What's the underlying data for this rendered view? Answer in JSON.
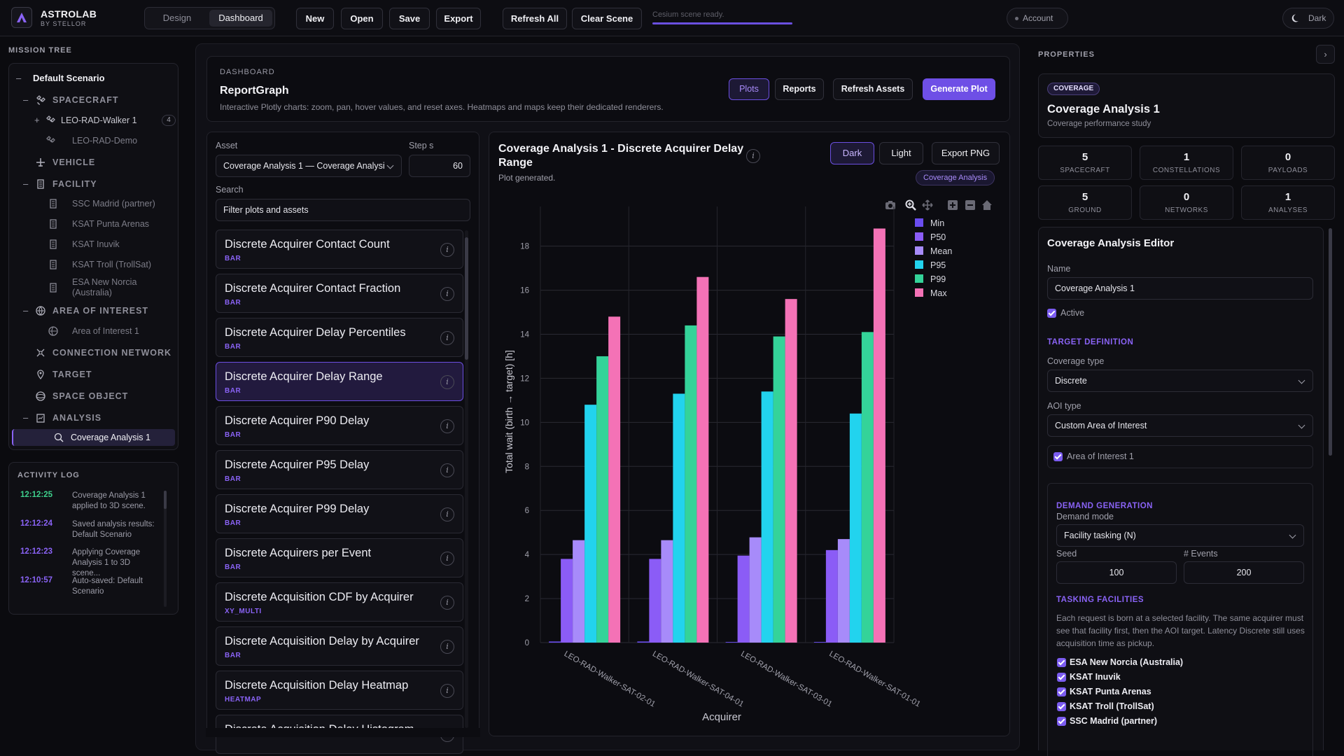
{
  "app": {
    "brand": "ASTROLAB",
    "brand_sub": "BY STELLOR"
  },
  "topbar": {
    "modes": [
      "Design",
      "Dashboard"
    ],
    "buttons": [
      "New",
      "Open",
      "Save",
      "Export",
      "Refresh All",
      "Clear Scene"
    ],
    "status_text": "Cesium scene ready.",
    "status_progress": 1.0,
    "account": "Account",
    "theme": "Dark"
  },
  "mission_tree": {
    "title": "MISSION TREE",
    "scenario": "Default Scenario",
    "spacecraft": "SPACECRAFT",
    "sc_items": [
      "LEO-RAD-Walker 1",
      "LEO-RAD-Demo"
    ],
    "sc_count": "4",
    "vehicle": "VEHICLE",
    "facility": "FACILITY",
    "facilities": [
      "SSC Madrid (partner)",
      "KSAT Punta Arenas",
      "KSAT Inuvik",
      "KSAT Troll (TrollSat)",
      "ESA New Norcia",
      "(Australia)"
    ],
    "aoi": "AREA OF INTEREST",
    "aoi_item": "Area of Interest 1",
    "network": "CONNECTION NETWORK",
    "target": "TARGET",
    "space_object": "SPACE OBJECT",
    "analysis": "ANALYSIS",
    "analysis_item": "Coverage Analysis 1"
  },
  "activity": {
    "title": "ACTIVITY LOG",
    "entries": [
      {
        "time": "12:12:25",
        "msg": "Coverage Analysis 1 applied to 3D scene.",
        "color": "#3ed08c"
      },
      {
        "time": "12:12:24",
        "msg": "Saved analysis results: Default Scenario",
        "color": "#8a63f6"
      },
      {
        "time": "12:12:23",
        "msg": "Applying Coverage Analysis 1 to 3D scene...",
        "color": "#8a63f6"
      },
      {
        "time": "12:10:57",
        "msg": "Auto-saved: Default Scenario",
        "color": "#8a63f6"
      }
    ]
  },
  "dashboard": {
    "eyebrow": "DASHBOARD",
    "title": "ReportGraph",
    "desc": "Interactive Plotly charts: zoom, pan, hover values, and reset axes. Heatmaps and maps keep their dedicated renderers.",
    "buttons": [
      "Plots",
      "Reports",
      "Refresh Assets",
      "Generate Plot"
    ]
  },
  "list": {
    "asset_label": "Asset",
    "asset_value": "Coverage Analysis 1 — Coverage Analysi",
    "step_label": "Step s",
    "step_value": "60",
    "search_label": "Search",
    "search_placeholder": "Filter plots and assets",
    "items": [
      {
        "title": "Discrete Acquirer Contact Count",
        "type": "BAR"
      },
      {
        "title": "Discrete Acquirer Contact Fraction",
        "type": "BAR"
      },
      {
        "title": "Discrete Acquirer Delay Percentiles",
        "type": "BAR"
      },
      {
        "title": "Discrete Acquirer Delay Range",
        "type": "BAR"
      },
      {
        "title": "Discrete Acquirer P90 Delay",
        "type": "BAR"
      },
      {
        "title": "Discrete Acquirer P95 Delay",
        "type": "BAR"
      },
      {
        "title": "Discrete Acquirer P99 Delay",
        "type": "BAR"
      },
      {
        "title": "Discrete Acquirers per Event",
        "type": "BAR"
      },
      {
        "title": "Discrete Acquisition CDF by Acquirer",
        "type": "XY_MULTI"
      },
      {
        "title": "Discrete Acquisition Delay by Acquirer",
        "type": "BAR"
      },
      {
        "title": "Discrete Acquisition Delay Heatmap",
        "type": "HEATMAP"
      },
      {
        "title": "Discrete Acquisition Delay Histogram",
        "type": ""
      }
    ]
  },
  "chart_panel": {
    "title_line1": "Coverage Analysis 1 - Discrete Acquirer Delay",
    "title_line2": "Range",
    "status": "Plot generated.",
    "buttons": [
      "Dark",
      "Light",
      "Export PNG"
    ],
    "tag": "Coverage Analysis"
  },
  "chart_data": {
    "type": "bar",
    "categories": [
      "LEO-RAD-Walker-SAT-02-01",
      "LEO-RAD-Walker-SAT-04-01",
      "LEO-RAD-Walker-SAT-03-01",
      "LEO-RAD-Walker-SAT-01-01"
    ],
    "series": [
      {
        "name": "Min",
        "color": "#6a4df0",
        "values": [
          0.05,
          0.05,
          0.03,
          0.03
        ]
      },
      {
        "name": "P50",
        "color": "#8b5cf6",
        "values": [
          3.8,
          3.8,
          3.95,
          4.2
        ]
      },
      {
        "name": "Mean",
        "color": "#a78bfa",
        "values": [
          4.65,
          4.65,
          4.78,
          4.7
        ]
      },
      {
        "name": "P95",
        "color": "#22d3ee",
        "values": [
          10.8,
          11.3,
          11.4,
          10.4
        ]
      },
      {
        "name": "P99",
        "color": "#34d399",
        "values": [
          13.0,
          14.4,
          13.9,
          14.1
        ]
      },
      {
        "name": "Max",
        "color": "#f472b6",
        "values": [
          14.8,
          16.6,
          15.6,
          18.8
        ]
      }
    ],
    "xlabel": "Acquirer",
    "ylabel": "Total wait (birth → target) [h]",
    "ylim": [
      0,
      19.8
    ],
    "yticks": [
      0,
      2,
      4,
      6,
      8,
      10,
      12,
      14,
      16,
      18
    ],
    "grid": true,
    "legend": "top-right"
  },
  "properties": {
    "title": "PROPERTIES",
    "badge": "COVERAGE",
    "name": "Coverage Analysis 1",
    "subtitle": "Coverage performance study",
    "stats": [
      {
        "v": "5",
        "l": "SPACECRAFT"
      },
      {
        "v": "1",
        "l": "CONSTELLATIONS"
      },
      {
        "v": "0",
        "l": "PAYLOADS"
      },
      {
        "v": "5",
        "l": "GROUND"
      },
      {
        "v": "0",
        "l": "NETWORKS"
      },
      {
        "v": "1",
        "l": "ANALYSES"
      }
    ],
    "editor_title": "Coverage Analysis Editor",
    "name_label": "Name",
    "name_value": "Coverage Analysis 1",
    "active": "Active",
    "target_def": "TARGET DEFINITION",
    "cov_type_label": "Coverage type",
    "cov_type": "Discrete",
    "aoi_type_label": "AOI type",
    "aoi_type": "Custom Area of Interest",
    "aoi_check": "Area of Interest 1",
    "demand": "DEMAND GENERATION",
    "demand_mode_label": "Demand mode",
    "demand_mode": "Facility tasking (N)",
    "seed_label": "Seed",
    "seed": "100",
    "events_label": "# Events",
    "events": "200",
    "tasking": "TASKING FACILITIES",
    "tasking_desc": "Each request is born at a selected facility. The same acquirer must see that facility first, then the AOI target. Latency Discrete still uses acquisition time as pickup.",
    "facilities": [
      "ESA New Norcia (Australia)",
      "KSAT Inuvik",
      "KSAT Punta Arenas",
      "KSAT Troll (TrollSat)",
      "SSC Madrid (partner)"
    ]
  }
}
